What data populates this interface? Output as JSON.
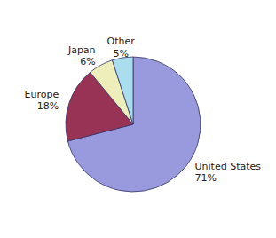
{
  "chart_data": {
    "type": "pie",
    "categories": [
      "United States",
      "Europe",
      "Japan",
      "Other"
    ],
    "values": [
      71,
      18,
      6,
      5
    ],
    "value_labels": [
      "71%",
      "18%",
      "6%",
      "5%"
    ],
    "colors": [
      "#9999dd",
      "#993355",
      "#eeeebb",
      "#aaddee"
    ]
  }
}
